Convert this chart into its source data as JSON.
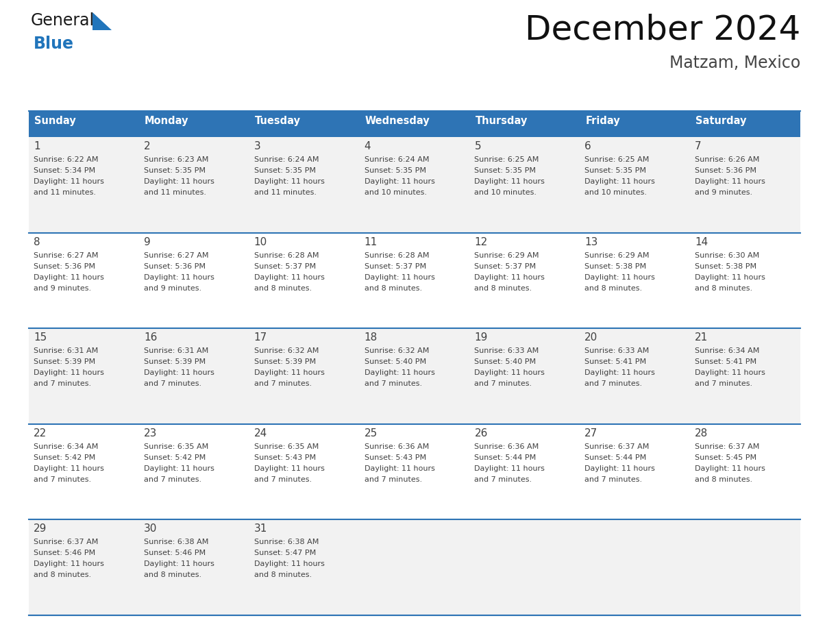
{
  "title": "December 2024",
  "subtitle": "Matzam, Mexico",
  "header_color": "#2E74B5",
  "header_text_color": "#FFFFFF",
  "row_colors": [
    "#F2F2F2",
    "#FFFFFF"
  ],
  "border_color": "#2E74B5",
  "text_color": "#404040",
  "day_num_color": "#404040",
  "days_of_week": [
    "Sunday",
    "Monday",
    "Tuesday",
    "Wednesday",
    "Thursday",
    "Friday",
    "Saturday"
  ],
  "calendar_data": [
    [
      {
        "day": 1,
        "sunrise": "6:22 AM",
        "sunset": "5:34 PM",
        "daylight": "11 hours",
        "daylight2": "and 11 minutes."
      },
      {
        "day": 2,
        "sunrise": "6:23 AM",
        "sunset": "5:35 PM",
        "daylight": "11 hours",
        "daylight2": "and 11 minutes."
      },
      {
        "day": 3,
        "sunrise": "6:24 AM",
        "sunset": "5:35 PM",
        "daylight": "11 hours",
        "daylight2": "and 11 minutes."
      },
      {
        "day": 4,
        "sunrise": "6:24 AM",
        "sunset": "5:35 PM",
        "daylight": "11 hours",
        "daylight2": "and 10 minutes."
      },
      {
        "day": 5,
        "sunrise": "6:25 AM",
        "sunset": "5:35 PM",
        "daylight": "11 hours",
        "daylight2": "and 10 minutes."
      },
      {
        "day": 6,
        "sunrise": "6:25 AM",
        "sunset": "5:35 PM",
        "daylight": "11 hours",
        "daylight2": "and 10 minutes."
      },
      {
        "day": 7,
        "sunrise": "6:26 AM",
        "sunset": "5:36 PM",
        "daylight": "11 hours",
        "daylight2": "and 9 minutes."
      }
    ],
    [
      {
        "day": 8,
        "sunrise": "6:27 AM",
        "sunset": "5:36 PM",
        "daylight": "11 hours",
        "daylight2": "and 9 minutes."
      },
      {
        "day": 9,
        "sunrise": "6:27 AM",
        "sunset": "5:36 PM",
        "daylight": "11 hours",
        "daylight2": "and 9 minutes."
      },
      {
        "day": 10,
        "sunrise": "6:28 AM",
        "sunset": "5:37 PM",
        "daylight": "11 hours",
        "daylight2": "and 8 minutes."
      },
      {
        "day": 11,
        "sunrise": "6:28 AM",
        "sunset": "5:37 PM",
        "daylight": "11 hours",
        "daylight2": "and 8 minutes."
      },
      {
        "day": 12,
        "sunrise": "6:29 AM",
        "sunset": "5:37 PM",
        "daylight": "11 hours",
        "daylight2": "and 8 minutes."
      },
      {
        "day": 13,
        "sunrise": "6:29 AM",
        "sunset": "5:38 PM",
        "daylight": "11 hours",
        "daylight2": "and 8 minutes."
      },
      {
        "day": 14,
        "sunrise": "6:30 AM",
        "sunset": "5:38 PM",
        "daylight": "11 hours",
        "daylight2": "and 8 minutes."
      }
    ],
    [
      {
        "day": 15,
        "sunrise": "6:31 AM",
        "sunset": "5:39 PM",
        "daylight": "11 hours",
        "daylight2": "and 7 minutes."
      },
      {
        "day": 16,
        "sunrise": "6:31 AM",
        "sunset": "5:39 PM",
        "daylight": "11 hours",
        "daylight2": "and 7 minutes."
      },
      {
        "day": 17,
        "sunrise": "6:32 AM",
        "sunset": "5:39 PM",
        "daylight": "11 hours",
        "daylight2": "and 7 minutes."
      },
      {
        "day": 18,
        "sunrise": "6:32 AM",
        "sunset": "5:40 PM",
        "daylight": "11 hours",
        "daylight2": "and 7 minutes."
      },
      {
        "day": 19,
        "sunrise": "6:33 AM",
        "sunset": "5:40 PM",
        "daylight": "11 hours",
        "daylight2": "and 7 minutes."
      },
      {
        "day": 20,
        "sunrise": "6:33 AM",
        "sunset": "5:41 PM",
        "daylight": "11 hours",
        "daylight2": "and 7 minutes."
      },
      {
        "day": 21,
        "sunrise": "6:34 AM",
        "sunset": "5:41 PM",
        "daylight": "11 hours",
        "daylight2": "and 7 minutes."
      }
    ],
    [
      {
        "day": 22,
        "sunrise": "6:34 AM",
        "sunset": "5:42 PM",
        "daylight": "11 hours",
        "daylight2": "and 7 minutes."
      },
      {
        "day": 23,
        "sunrise": "6:35 AM",
        "sunset": "5:42 PM",
        "daylight": "11 hours",
        "daylight2": "and 7 minutes."
      },
      {
        "day": 24,
        "sunrise": "6:35 AM",
        "sunset": "5:43 PM",
        "daylight": "11 hours",
        "daylight2": "and 7 minutes."
      },
      {
        "day": 25,
        "sunrise": "6:36 AM",
        "sunset": "5:43 PM",
        "daylight": "11 hours",
        "daylight2": "and 7 minutes."
      },
      {
        "day": 26,
        "sunrise": "6:36 AM",
        "sunset": "5:44 PM",
        "daylight": "11 hours",
        "daylight2": "and 7 minutes."
      },
      {
        "day": 27,
        "sunrise": "6:37 AM",
        "sunset": "5:44 PM",
        "daylight": "11 hours",
        "daylight2": "and 7 minutes."
      },
      {
        "day": 28,
        "sunrise": "6:37 AM",
        "sunset": "5:45 PM",
        "daylight": "11 hours",
        "daylight2": "and 8 minutes."
      }
    ],
    [
      {
        "day": 29,
        "sunrise": "6:37 AM",
        "sunset": "5:46 PM",
        "daylight": "11 hours",
        "daylight2": "and 8 minutes."
      },
      {
        "day": 30,
        "sunrise": "6:38 AM",
        "sunset": "5:46 PM",
        "daylight": "11 hours",
        "daylight2": "and 8 minutes."
      },
      {
        "day": 31,
        "sunrise": "6:38 AM",
        "sunset": "5:47 PM",
        "daylight": "11 hours",
        "daylight2": "and 8 minutes."
      },
      null,
      null,
      null,
      null
    ]
  ],
  "logo_general_color": "#1a1a1a",
  "logo_blue_color": "#2175BB",
  "fig_width": 11.88,
  "fig_height": 9.18
}
